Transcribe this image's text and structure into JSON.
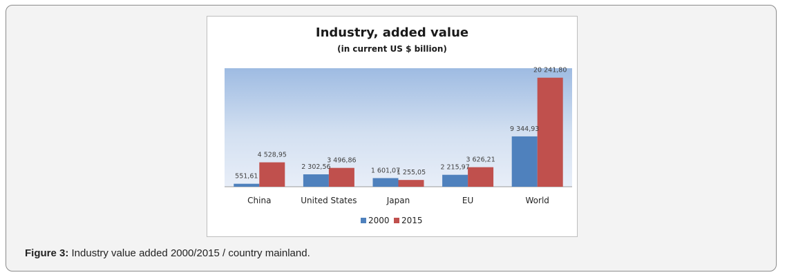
{
  "chart_data": {
    "type": "bar",
    "title": "Industry, added value",
    "subtitle": "(in current US $ billion)",
    "categories": [
      "China",
      "United States",
      "Japan",
      "EU",
      "World"
    ],
    "series": [
      {
        "name": "2000",
        "color": "#4f81bd",
        "values": [
          551.61,
          2302.56,
          1601.07,
          2215.97,
          9344.93
        ],
        "labels": [
          "551,61",
          "2 302,56",
          "1 601,07",
          "2 215,97",
          "9 344,93"
        ]
      },
      {
        "name": "2015",
        "color": "#c0504d",
        "values": [
          4528.95,
          3496.86,
          1255.05,
          3626.21,
          20241.8
        ],
        "labels": [
          "4 528,95",
          "3 496,86",
          "1 255,05",
          "3 626,21",
          "20 241,80"
        ]
      }
    ],
    "xlabel": "",
    "ylabel": "",
    "ylim": [
      0,
      22000
    ],
    "grid": false,
    "legend": "bottom"
  },
  "caption": {
    "label": "Figure 3:",
    "text": " Industry value added 2000/2015 / country mainland."
  }
}
